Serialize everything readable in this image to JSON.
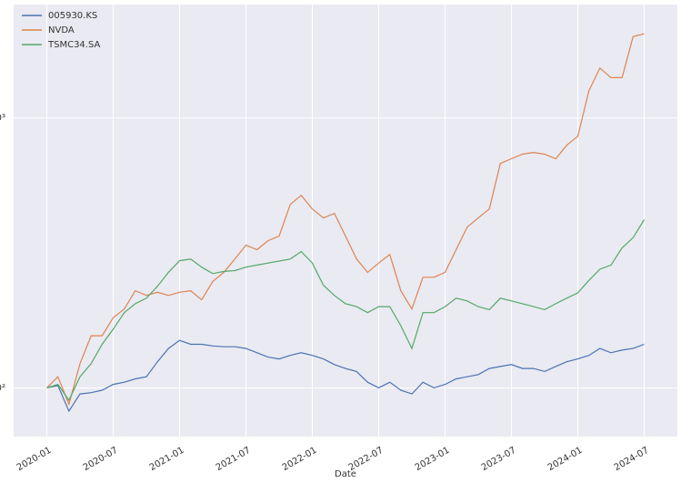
{
  "chart_data": {
    "type": "line",
    "x_label": "Date",
    "x": [
      "2020-01",
      "2020-02",
      "2020-03",
      "2020-04",
      "2020-05",
      "2020-06",
      "2020-07",
      "2020-08",
      "2020-09",
      "2020-10",
      "2020-11",
      "2020-12",
      "2021-01",
      "2021-02",
      "2021-03",
      "2021-04",
      "2021-05",
      "2021-06",
      "2021-07",
      "2021-08",
      "2021-09",
      "2021-10",
      "2021-11",
      "2021-12",
      "2022-01",
      "2022-02",
      "2022-03",
      "2022-04",
      "2022-05",
      "2022-06",
      "2022-07",
      "2022-08",
      "2022-09",
      "2022-10",
      "2022-11",
      "2022-12",
      "2023-01",
      "2023-02",
      "2023-03",
      "2023-04",
      "2023-05",
      "2023-06",
      "2023-07",
      "2023-08",
      "2023-09",
      "2023-10",
      "2023-11",
      "2023-12",
      "2024-01",
      "2024-02",
      "2024-03",
      "2024-04",
      "2024-05",
      "2024-06",
      "2024-07"
    ],
    "series": [
      {
        "name": "005930.KS",
        "color": "#4c72b0",
        "values": [
          100,
          102,
          82,
          95,
          96,
          98,
          103,
          105,
          108,
          110,
          125,
          140,
          150,
          145,
          145,
          143,
          142,
          142,
          140,
          135,
          130,
          128,
          132,
          135,
          132,
          128,
          122,
          118,
          115,
          105,
          100,
          105,
          98,
          95,
          105,
          100,
          103,
          108,
          110,
          112,
          118,
          120,
          122,
          118,
          118,
          115,
          120,
          125,
          128,
          132,
          140,
          135,
          138,
          140,
          145
        ]
      },
      {
        "name": "NVDA",
        "color": "#dd8452",
        "values": [
          100,
          110,
          87,
          123,
          156,
          156,
          182,
          196,
          229,
          220,
          226,
          220,
          226,
          229,
          212,
          248,
          268,
          300,
          338,
          325,
          351,
          365,
          478,
          517,
          460,
          426,
          443,
          365,
          300,
          268,
          290,
          312,
          229,
          196,
          257,
          257,
          268,
          325,
          394,
          426,
          460,
          678,
          706,
          734,
          745,
          734,
          706,
          792,
          855,
          1260,
          1530,
          1410,
          1410,
          2000,
          2050
        ]
      },
      {
        "name": "TSMC34.SA",
        "color": "#55a868",
        "values": [
          100,
          103,
          90,
          110,
          123,
          145,
          165,
          190,
          205,
          215,
          238,
          268,
          296,
          300,
          280,
          265,
          270,
          272,
          280,
          285,
          290,
          295,
          300,
          320,
          290,
          240,
          220,
          205,
          200,
          190,
          200,
          200,
          170,
          140,
          190,
          190,
          200,
          215,
          210,
          200,
          195,
          215,
          210,
          205,
          200,
          195,
          205,
          215,
          225,
          250,
          275,
          285,
          330,
          360,
          420
        ]
      }
    ],
    "xlim": [
      "2019-10",
      "2024-10"
    ],
    "xticks": [
      "2020-01",
      "2020-07",
      "2021-01",
      "2021-07",
      "2022-01",
      "2022-07",
      "2023-01",
      "2023-07",
      "2024-01",
      "2024-07"
    ],
    "ylim": [
      66,
      2630
    ],
    "yticks": [
      {
        "value": 100,
        "label": "10²"
      },
      {
        "value": 1000,
        "label": "10³"
      }
    ],
    "y_scale": "log",
    "grid": true,
    "legend": "upper left"
  }
}
